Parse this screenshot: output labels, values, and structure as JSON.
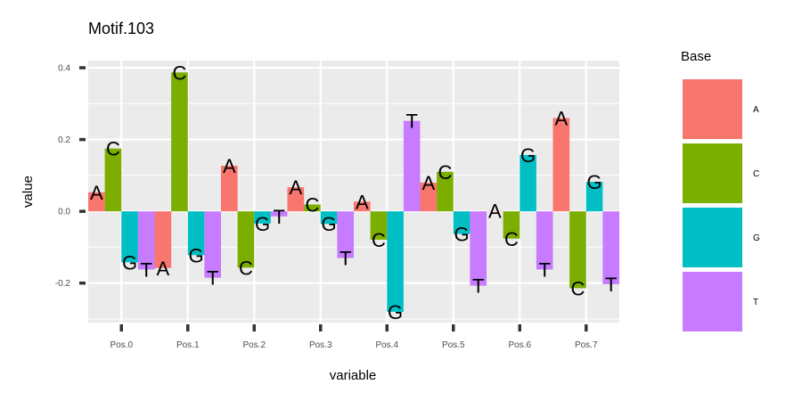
{
  "chart_data": {
    "type": "bar",
    "title": "Motif.103",
    "xlabel": "variable",
    "ylabel": "value",
    "ylim": [
      -0.31,
      0.42
    ],
    "yticks": [
      -0.2,
      0.0,
      0.2,
      0.4
    ],
    "ytick_labels": [
      "-0.2",
      "0.0",
      "0.2",
      "0.4"
    ],
    "categories": [
      "Pos.0",
      "Pos.1",
      "Pos.2",
      "Pos.3",
      "Pos.4",
      "Pos.5",
      "Pos.6",
      "Pos.7"
    ],
    "legend_title": "Base",
    "legend_position": "right",
    "series": [
      {
        "name": "A",
        "color": "#F8766D",
        "values": [
          0.053,
          -0.158,
          0.127,
          0.067,
          0.027,
          0.08,
          0.001,
          0.26
        ]
      },
      {
        "name": "C",
        "color": "#7CAE00",
        "values": [
          0.175,
          0.387,
          -0.157,
          0.019,
          -0.079,
          0.11,
          -0.076,
          -0.214
        ]
      },
      {
        "name": "G",
        "color": "#00BFC4",
        "values": [
          -0.142,
          -0.122,
          -0.034,
          -0.035,
          -0.28,
          -0.063,
          0.157,
          0.082
        ]
      },
      {
        "name": "T",
        "color": "#C77CFF",
        "values": [
          -0.162,
          -0.185,
          -0.014,
          -0.13,
          0.252,
          -0.207,
          -0.162,
          -0.203
        ]
      }
    ],
    "grid": true,
    "panel_background": "#EBEBEB",
    "grid_color": "#FFFFFF"
  }
}
